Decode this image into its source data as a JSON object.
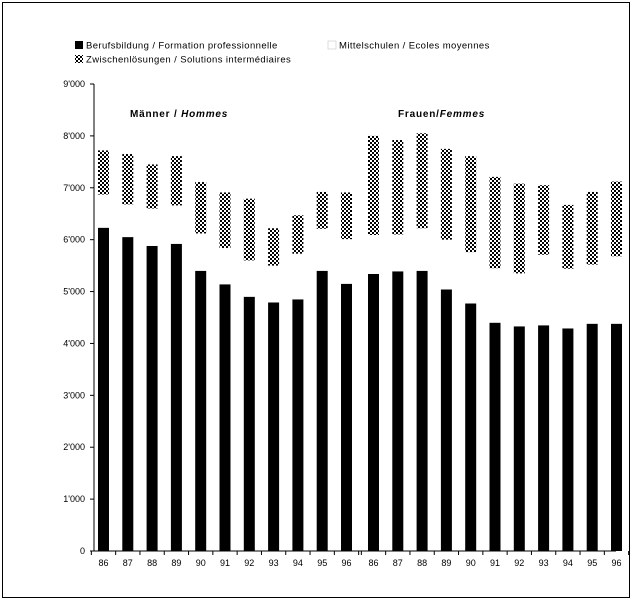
{
  "chart_data": {
    "type": "bar",
    "stacked": true,
    "title": "",
    "xlabel": "",
    "ylabel": "",
    "ylim": [
      0,
      9000
    ],
    "yticks": [
      "0",
      "1'000",
      "2'000",
      "3'000",
      "4'000",
      "5'000",
      "6'000",
      "7'000",
      "8'000",
      "9'000"
    ],
    "legend_position": "top",
    "grid": false,
    "legend": [
      {
        "key": "berufsbildung",
        "label": "Berufsbildung / Formation professionnelle",
        "pattern": "solid-black"
      },
      {
        "key": "mittelschulen",
        "label": "Mittelschulen / Ecoles moyennes",
        "pattern": "white"
      },
      {
        "key": "zwischen",
        "label": "Zwischenlösungen / Solutions intermédiaires",
        "pattern": "checker"
      }
    ],
    "panels": [
      {
        "title_plain": "Männer / ",
        "title_italic": "Hommes",
        "categories": [
          "86",
          "87",
          "88",
          "89",
          "90",
          "91",
          "92",
          "93",
          "94",
          "95",
          "96"
        ],
        "series": [
          {
            "name": "Berufsbildung / Formation professionnelle",
            "values": [
              6230,
              6050,
              5880,
              5920,
              5400,
              5140,
              4900,
              4790,
              4850,
              5400,
              5150
            ]
          },
          {
            "name": "Mittelschulen / Ecoles moyennes",
            "values": [
              640,
              630,
              720,
              740,
              720,
              700,
              700,
              710,
              880,
              810,
              860
            ]
          },
          {
            "name": "Zwischenlösungen / Solutions intermédiaires",
            "values": [
              850,
              970,
              850,
              950,
              990,
              1070,
              1190,
              720,
              740,
              710,
              900
            ]
          }
        ]
      },
      {
        "title_plain": "Frauen/",
        "title_italic": "Femmes",
        "categories": [
          "86",
          "87",
          "88",
          "89",
          "90",
          "91",
          "92",
          "93",
          "94",
          "95",
          "96"
        ],
        "series": [
          {
            "name": "Berufsbildung / Formation professionnelle",
            "values": [
              5340,
              5390,
              5400,
              5040,
              4770,
              4400,
              4330,
              4350,
              4290,
              4380,
              4380
            ]
          },
          {
            "name": "Mittelschulen / Ecoles moyennes",
            "values": [
              750,
              710,
              820,
              960,
              990,
              1050,
              1020,
              1360,
              1150,
              1140,
              1300
            ]
          },
          {
            "name": "Zwischenlösungen / Solutions intermédiaires",
            "values": [
              1910,
              1820,
              1830,
              1750,
              1850,
              1760,
              1730,
              1340,
              1230,
              1400,
              1440
            ]
          }
        ]
      }
    ]
  }
}
